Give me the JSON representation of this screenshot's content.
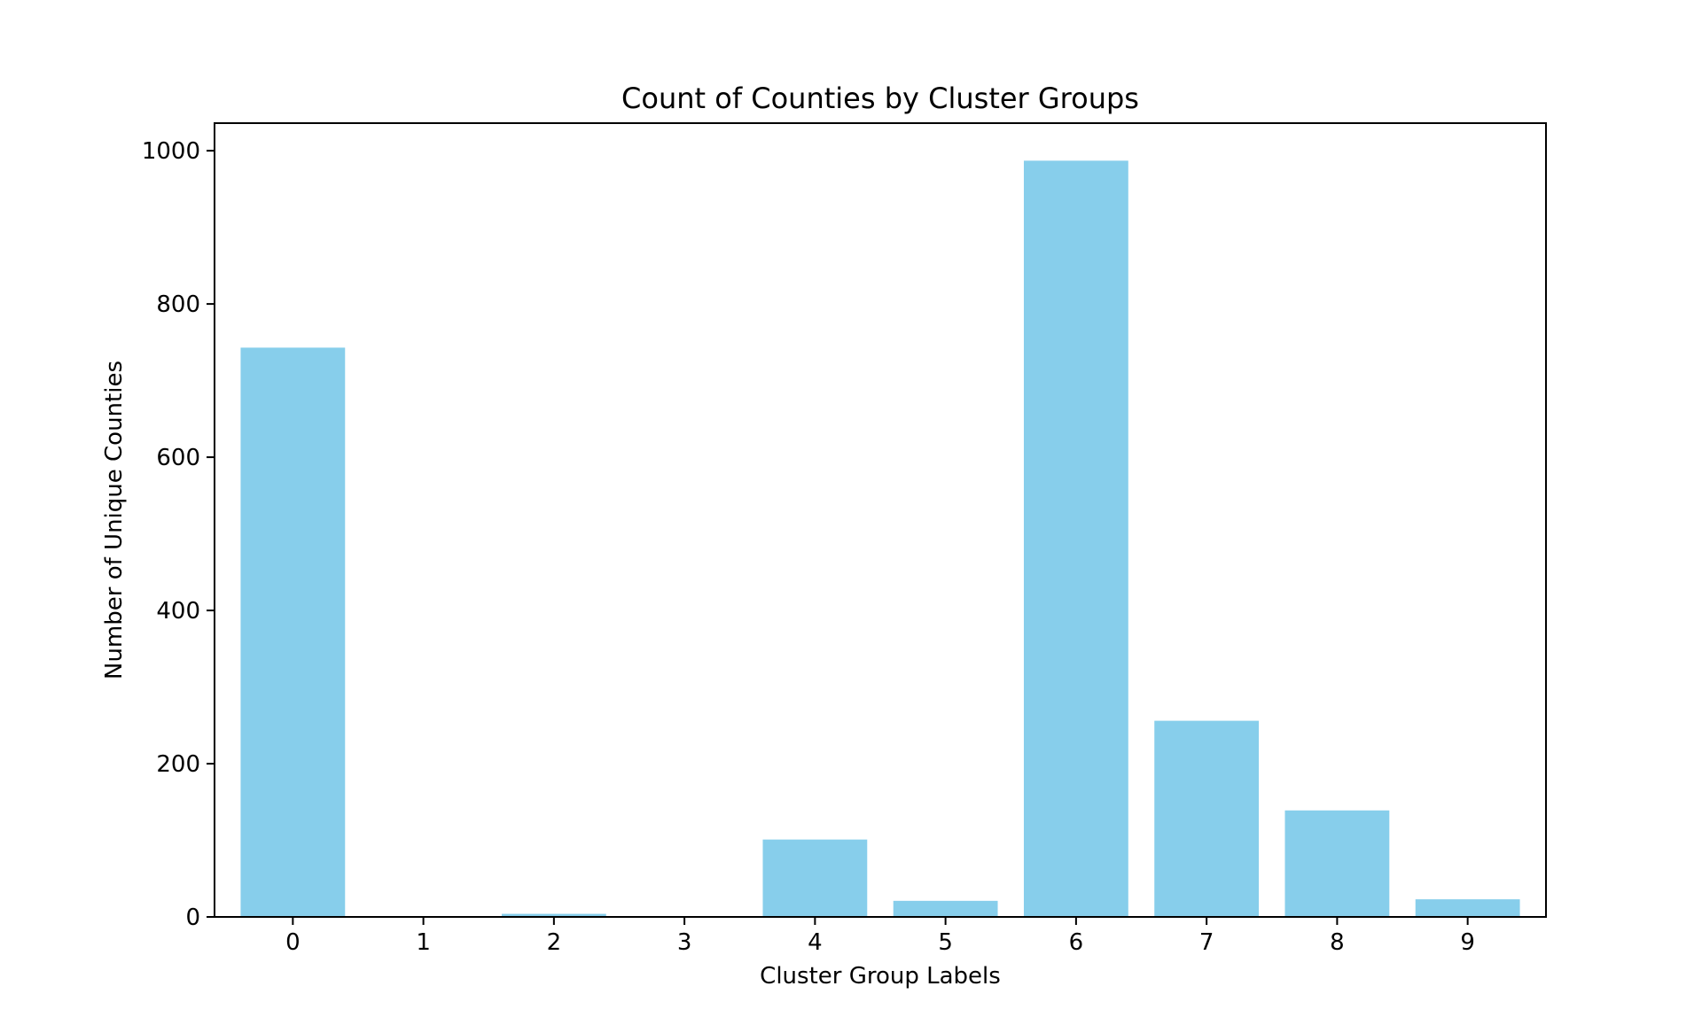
{
  "chart_data": {
    "type": "bar",
    "title": "Count of Counties by Cluster Groups",
    "xlabel": "Cluster Group Labels",
    "ylabel": "Number of Unique Counties",
    "categories": [
      "0",
      "1",
      "2",
      "3",
      "4",
      "5",
      "6",
      "7",
      "8",
      "9"
    ],
    "values": [
      743,
      0,
      4,
      0,
      101,
      21,
      987,
      256,
      139,
      23
    ],
    "ylim": [
      0,
      1036
    ],
    "yticks": [
      0,
      200,
      400,
      600,
      800,
      1000
    ],
    "grid": false,
    "bar_color": "#87CEEB"
  }
}
